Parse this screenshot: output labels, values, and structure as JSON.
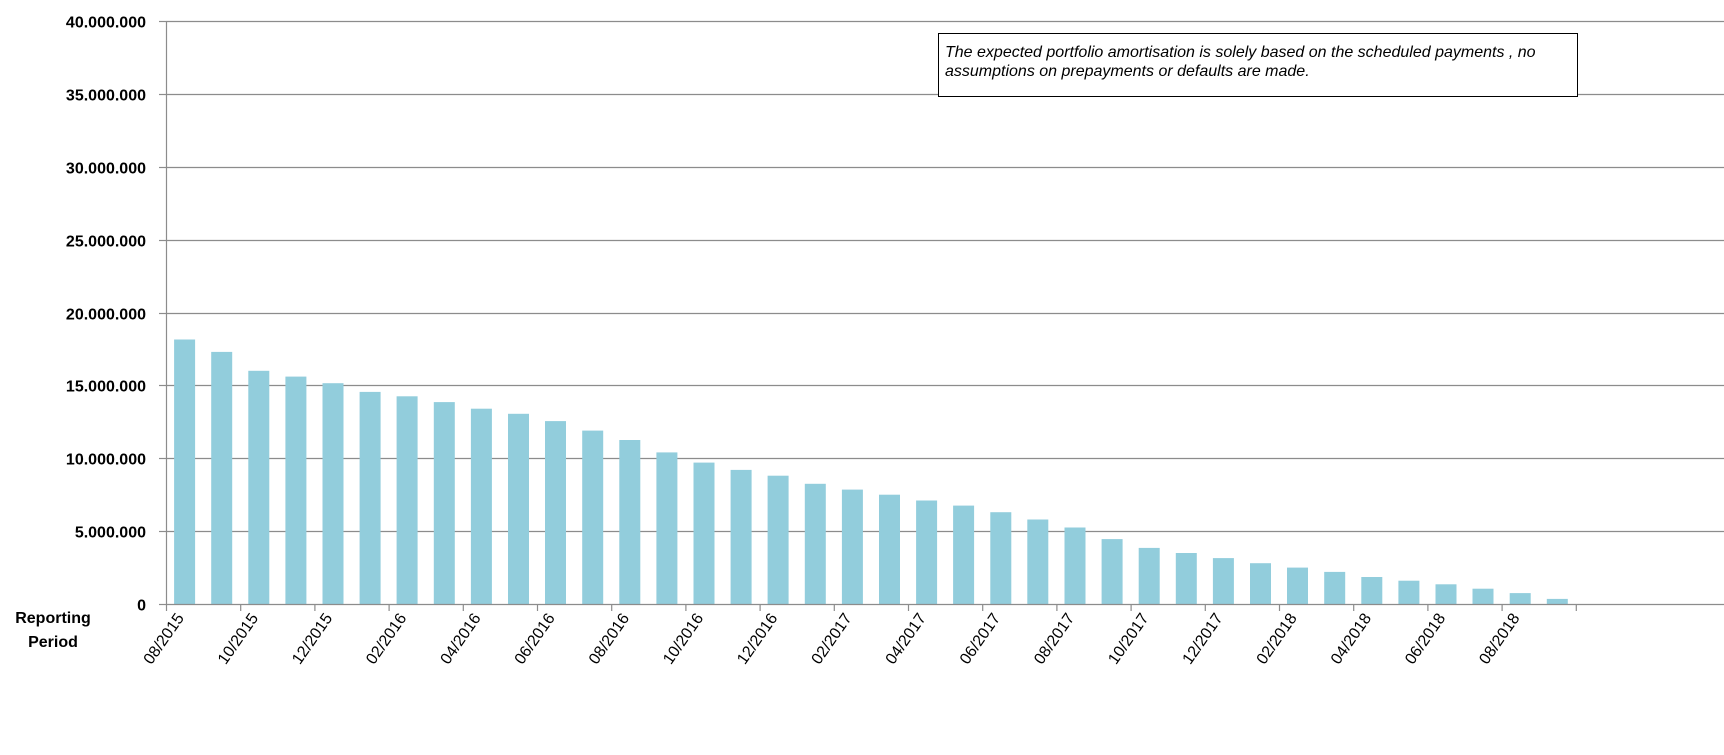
{
  "chart_data": {
    "type": "bar",
    "title": "",
    "xlabel": "Reporting Period",
    "ylabel": "",
    "ylim": [
      0,
      40000000
    ],
    "yticks": [
      "0",
      "5.000.000",
      "10.000.000",
      "15.000.000",
      "20.000.000",
      "25.000.000",
      "30.000.000",
      "35.000.000",
      "40.000.000"
    ],
    "ytick_values": [
      0,
      5000000,
      10000000,
      15000000,
      20000000,
      25000000,
      30000000,
      35000000,
      40000000
    ],
    "grid": true,
    "bar_color": "#92CDDC",
    "categories": [
      "08/2015",
      "09/2015",
      "10/2015",
      "11/2015",
      "12/2015",
      "01/2016",
      "02/2016",
      "03/2016",
      "04/2016",
      "05/2016",
      "06/2016",
      "07/2016",
      "08/2016",
      "09/2016",
      "10/2016",
      "11/2016",
      "12/2016",
      "01/2017",
      "02/2017",
      "03/2017",
      "04/2017",
      "05/2017",
      "06/2017",
      "07/2017",
      "08/2017",
      "09/2017",
      "10/2017",
      "11/2017",
      "12/2017",
      "01/2018",
      "02/2018",
      "03/2018",
      "04/2018",
      "05/2018",
      "06/2018",
      "07/2018",
      "08/2018",
      "09/2018"
    ],
    "values": [
      18150000,
      17300000,
      16000000,
      15600000,
      15150000,
      14550000,
      14250000,
      13850000,
      13400000,
      13050000,
      12550000,
      11900000,
      11250000,
      10400000,
      9700000,
      9200000,
      8800000,
      8250000,
      7850000,
      7500000,
      7100000,
      6750000,
      6300000,
      5800000,
      5250000,
      4450000,
      3850000,
      3500000,
      3150000,
      2800000,
      2500000,
      2200000,
      1850000,
      1600000,
      1350000,
      1050000,
      750000,
      350000
    ],
    "xtick_labels_shown": [
      "08/2015",
      "10/2015",
      "12/2015",
      "02/2016",
      "04/2016",
      "06/2016",
      "08/2016",
      "10/2016",
      "12/2016",
      "02/2017",
      "04/2017",
      "06/2017",
      "08/2017",
      "10/2017",
      "12/2017",
      "02/2018",
      "04/2018",
      "06/2018",
      "08/2018"
    ],
    "annotation": "The expected portfolio amortisation is solely based on the scheduled payments , no assumptions on prepayments or defaults are made.",
    "annotation_placement": "top-right"
  }
}
